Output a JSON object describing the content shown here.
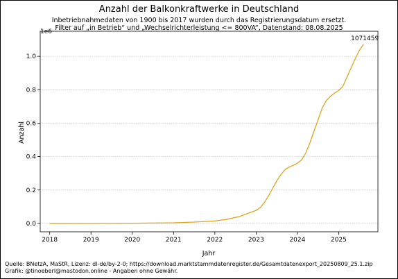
{
  "chart_data": {
    "type": "line",
    "title": "Anzahl der Balkonkraftwerke in Deutschland",
    "subtitle_lines": [
      "Inbetriebnahmedaten von 1900 bis 2017 wurden durch das Registrierungsdatum ersetzt.",
      "Filter auf „in Betrieb“ und „Wechselrichterleistung <= 800VA“, Datenstand: 08.08.2025"
    ],
    "xlabel": "Jahr",
    "ylabel": "Anzahl",
    "y_scale_label": "1e6",
    "xlim": [
      2017.77,
      2025.95
    ],
    "ylim": [
      -50000,
      1150000
    ],
    "x_ticks": [
      2018,
      2019,
      2020,
      2021,
      2022,
      2023,
      2024,
      2025
    ],
    "x_tick_labels": [
      "2018",
      "2019",
      "2020",
      "2021",
      "2022",
      "2023",
      "2024",
      "2025"
    ],
    "y_ticks": [
      0,
      200000,
      400000,
      600000,
      800000,
      1000000
    ],
    "y_tick_labels": [
      "0.0",
      "0.2",
      "0.4",
      "0.6",
      "0.8",
      "1.0"
    ],
    "grid": "horizontal",
    "line_color": "#daa520",
    "series": [
      {
        "x": [
          2018.0,
          2019.0,
          2020.0,
          2021.0,
          2021.5,
          2022.0,
          2022.3,
          2022.6,
          2022.8,
          2023.0,
          2023.1,
          2023.2,
          2023.3,
          2023.4,
          2023.5,
          2023.6,
          2023.7,
          2023.8,
          2023.9,
          2024.0,
          2024.1,
          2024.2,
          2024.3,
          2024.4,
          2024.5,
          2024.6,
          2024.7,
          2024.8,
          2024.9,
          2025.0,
          2025.1,
          2025.2,
          2025.3,
          2025.4,
          2025.5,
          2025.6
        ],
        "y": [
          0,
          500,
          1500,
          4000,
          8000,
          15000,
          25000,
          42000,
          60000,
          78000,
          95000,
          125000,
          165000,
          210000,
          255000,
          292000,
          322000,
          338000,
          348000,
          360000,
          380000,
          420000,
          480000,
          550000,
          620000,
          690000,
          735000,
          760000,
          780000,
          795000,
          820000,
          875000,
          930000,
          985000,
          1035000,
          1071459
        ]
      }
    ],
    "annotations": [
      {
        "text": "1071459",
        "x": 2025.6,
        "y": 1071459
      }
    ],
    "footer_lines": [
      "Quelle: BNetzA, MaStR, Lizenz: dl-de/by-2-0; https://download.marktstammdatenregister.de/Gesamtdatenexport_20250809_25.1.zip",
      "Grafik: @tinoeberl@mastodon.online - Angaben ohne Gewähr."
    ]
  }
}
